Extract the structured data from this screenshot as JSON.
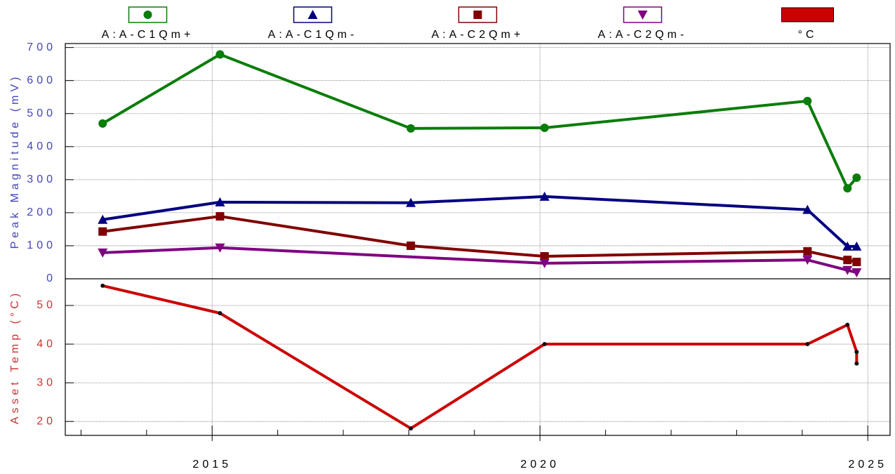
{
  "chart_data": [
    {
      "type": "line",
      "ylabel": "Peak Magnitude (mV)",
      "label_color": "#4444bb",
      "xlim": [
        2012.76,
        2025.34
      ],
      "xticks": [
        2015,
        2020,
        2025
      ],
      "ylim": [
        0,
        712
      ],
      "yticks": [
        0,
        100,
        200,
        300,
        400,
        500,
        600,
        700
      ],
      "grid": true,
      "series": [
        {
          "name": "A:A-C1Qm+",
          "color": "#0a7d0a",
          "marker": "circle",
          "x": [
            2013.33,
            2015.12,
            2018.03,
            2020.07,
            2024.08,
            2024.69,
            2024.83
          ],
          "values": [
            470,
            679,
            455,
            457,
            538,
            274,
            306
          ]
        },
        {
          "name": "A:A-C1Qm-",
          "color": "#000080",
          "marker": "triangle-up",
          "x": [
            2013.33,
            2015.12,
            2018.03,
            2020.07,
            2024.08,
            2024.69,
            2024.83
          ],
          "values": [
            179,
            232,
            230,
            249,
            209,
            98,
            98
          ]
        },
        {
          "name": "A:A-C2Qm+",
          "color": "#800000",
          "marker": "square",
          "x": [
            2013.33,
            2015.12,
            2018.03,
            2020.07,
            2024.08,
            2024.69,
            2024.83
          ],
          "values": [
            143,
            189,
            100,
            68,
            83,
            57,
            51
          ]
        },
        {
          "name": "A:A-C2Qm-",
          "color": "#800080",
          "marker": "triangle-down",
          "x": [
            2013.33,
            2015.12,
            2020.07,
            2024.08,
            2024.69,
            2024.83
          ],
          "values": [
            79,
            94,
            47,
            57,
            26,
            19
          ]
        }
      ]
    },
    {
      "type": "line",
      "ylabel": "Asset Temp (°C)",
      "label_color": "#cc3333",
      "xlim": [
        2012.76,
        2025.34
      ],
      "xticks": [
        2015,
        2020,
        2025
      ],
      "xminorticks": [
        2013,
        2014,
        2016,
        2017,
        2018,
        2019,
        2021,
        2022,
        2023,
        2024
      ],
      "ylim": [
        16.4,
        56.9
      ],
      "yticks": [
        20,
        30,
        40,
        50
      ],
      "grid": true,
      "series": [
        {
          "name": "°C",
          "color": "#cc0000",
          "marker": "dot",
          "x": [
            2013.33,
            2015.12,
            2018.03,
            2020.07,
            2024.08,
            2024.69,
            2024.83,
            2024.83
          ],
          "values": [
            55.1,
            48,
            18.2,
            40,
            40,
            45,
            38,
            35
          ]
        }
      ]
    }
  ]
}
